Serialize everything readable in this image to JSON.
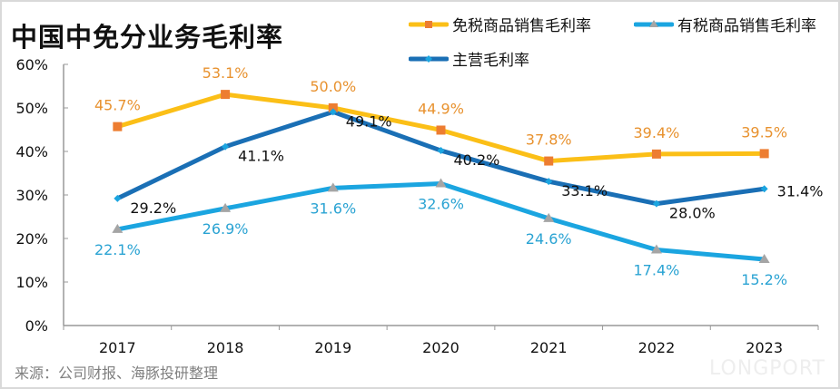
{
  "chart_data": {
    "type": "line",
    "title": "中国中免分业务毛利率",
    "xlabel": "",
    "ylabel": "",
    "categories": [
      "2017",
      "2018",
      "2019",
      "2020",
      "2021",
      "2022",
      "2023"
    ],
    "ylim": [
      0,
      60
    ],
    "yticks": [
      "0%",
      "10%",
      "20%",
      "30%",
      "40%",
      "50%",
      "60%"
    ],
    "grid": false,
    "legend_position": "top-right",
    "series": [
      {
        "name": "免税商品销售毛利率",
        "values": [
          45.7,
          53.1,
          50.0,
          44.9,
          37.8,
          39.4,
          39.5
        ],
        "labels": [
          "45.7%",
          "53.1%",
          "50.0%",
          "44.9%",
          "37.8%",
          "39.4%",
          "39.5%"
        ],
        "line_color": "#FBBF17",
        "marker_color": "#ED7D31",
        "label_color": "#E8922F",
        "marker": "square"
      },
      {
        "name": "有税商品销售毛利率",
        "values": [
          22.1,
          26.9,
          31.6,
          32.6,
          24.6,
          17.4,
          15.2
        ],
        "labels": [
          "22.1%",
          "26.9%",
          "31.6%",
          "32.6%",
          "24.6%",
          "17.4%",
          "15.2%"
        ],
        "line_color": "#1BA5E0",
        "marker_color": "#A5A5A5",
        "label_color": "#2AA3D3",
        "marker": "triangle"
      },
      {
        "name": "主营毛利率",
        "values": [
          29.2,
          41.1,
          49.1,
          40.2,
          33.1,
          28.0,
          31.4
        ],
        "labels": [
          "29.2%",
          "41.1%",
          "49.1%",
          "40.2%",
          "33.1%",
          "28.0%",
          "31.4%"
        ],
        "line_color": "#1A6FB5",
        "marker_color": "#1BA5E0",
        "label_color": "#111111",
        "marker": "diamond"
      }
    ],
    "source": "来源：公司财报、海豚投研整理"
  },
  "watermark": "LONGPORT"
}
